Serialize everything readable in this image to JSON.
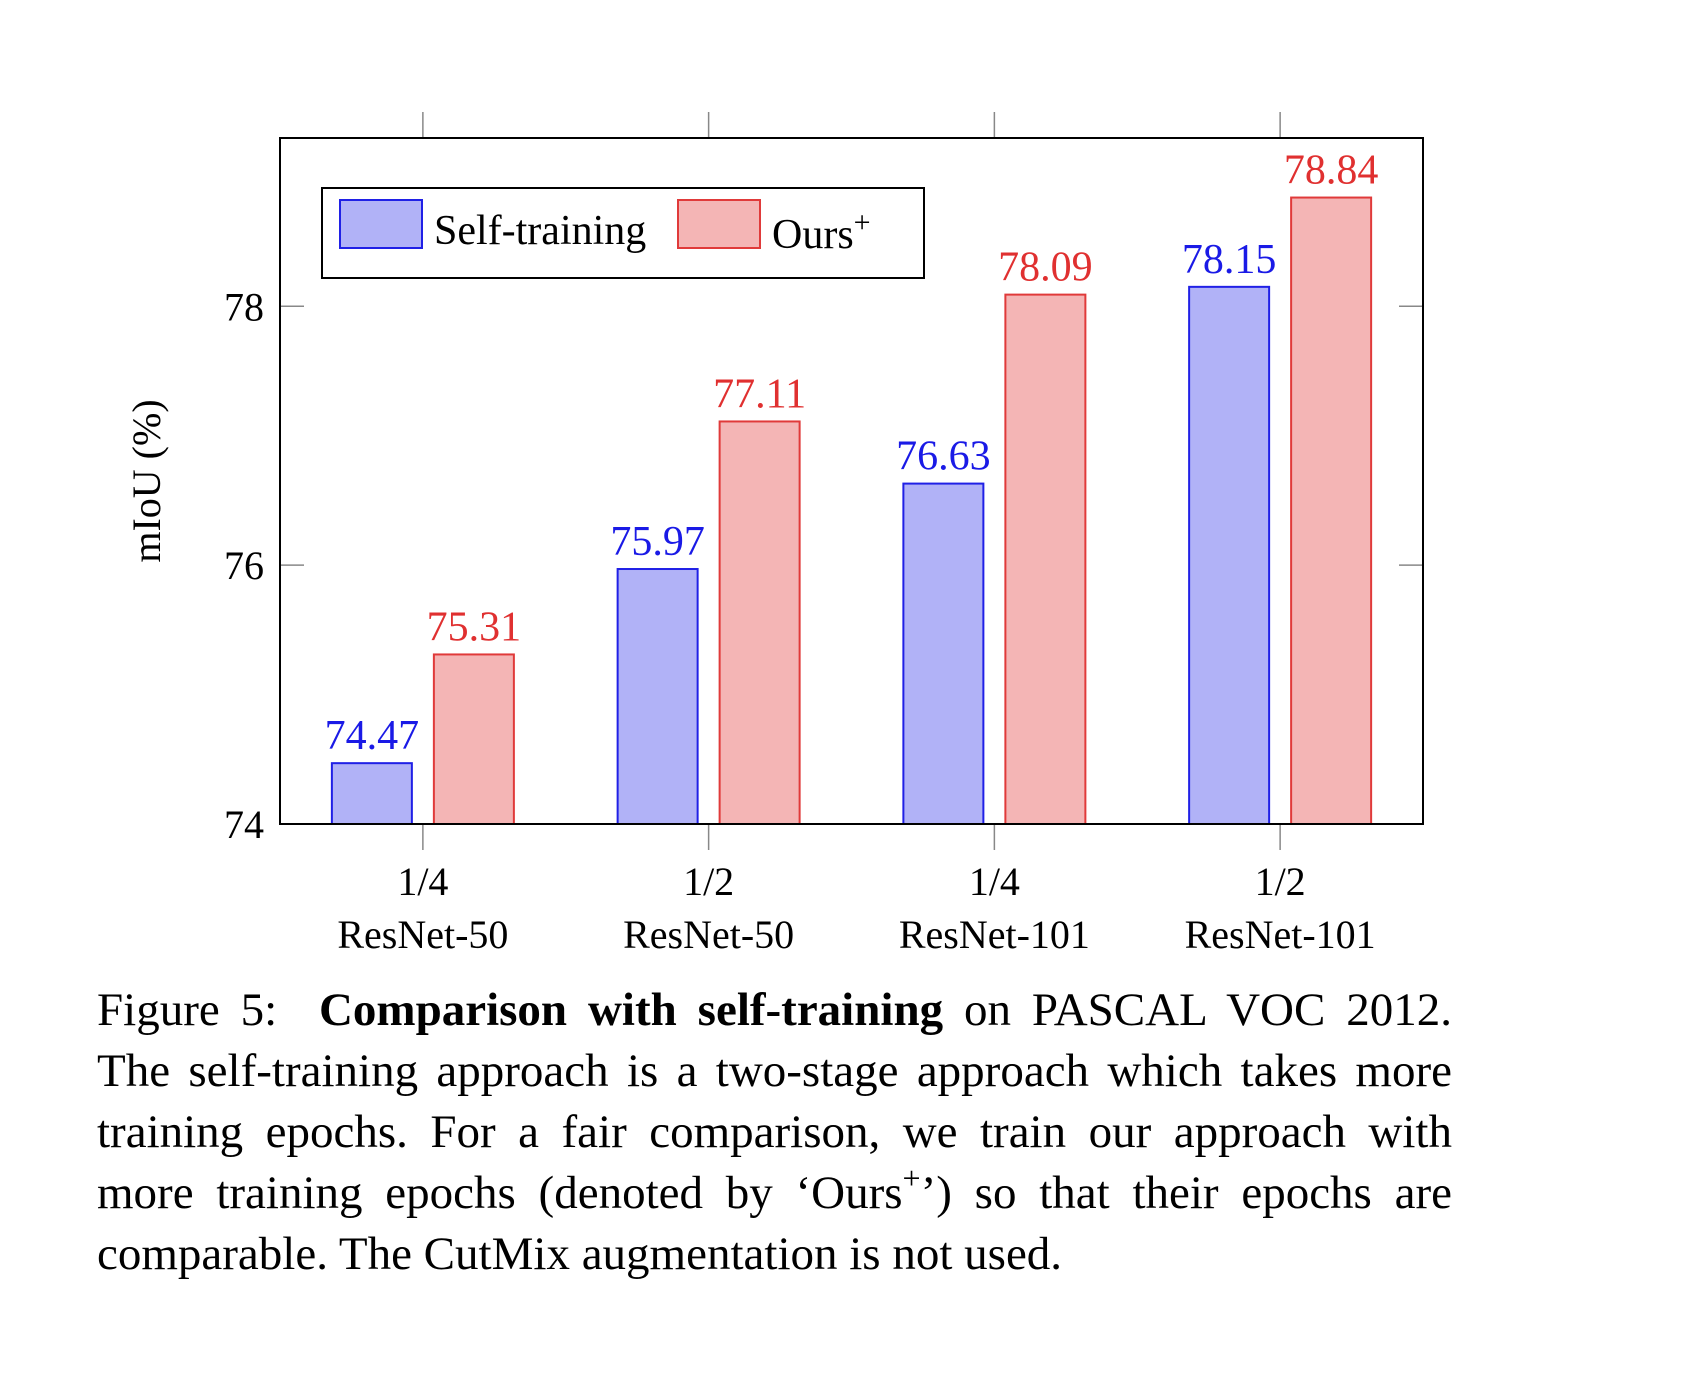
{
  "chart_data": {
    "type": "bar",
    "categories": [
      {
        "fraction": "1/4",
        "backbone": "ResNet-50"
      },
      {
        "fraction": "1/2",
        "backbone": "ResNet-50"
      },
      {
        "fraction": "1/4",
        "backbone": "ResNet-101"
      },
      {
        "fraction": "1/2",
        "backbone": "ResNet-101"
      }
    ],
    "series": [
      {
        "name": "Self-training",
        "values": [
          74.47,
          75.97,
          76.63,
          78.15
        ],
        "fill": "#b1b2f7",
        "stroke": "#2020e6",
        "label_color": "#1a1ae6"
      },
      {
        "name": "Ours",
        "name_sup": "+",
        "values": [
          75.31,
          77.11,
          78.09,
          78.84
        ],
        "fill": "#f4b5b5",
        "stroke": "#e03a3a",
        "label_color": "#e03030"
      }
    ],
    "value_labels": [
      [
        "74.47",
        "75.97",
        "76.63",
        "78.15"
      ],
      [
        "75.31",
        "77.11",
        "78.09",
        "78.84"
      ]
    ],
    "ylabel": "mIoU (%)",
    "yticks": [
      "74",
      "76",
      "78"
    ],
    "ylim": [
      74,
      79.3
    ],
    "legend": "top-left",
    "grid": false
  },
  "caption": {
    "label": "Figure 5:",
    "bold": "Comparison with self-training",
    "text1": " on PASCAL VOC 2012. The self-training approach is a two-stage approach which takes more training epochs. For a fair comparison, we train our approach with more training epochs (denoted by ‘Ours",
    "sup": "+",
    "text2": "’) so that their epochs are comparable. The CutMix augmentation is not used."
  }
}
